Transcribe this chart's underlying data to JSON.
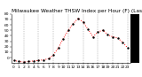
{
  "title": "Milwaukee Weather THSW Index per Hour (F) (Last 24 Hours)",
  "x": [
    0,
    1,
    2,
    3,
    4,
    5,
    6,
    7,
    8,
    9,
    10,
    11,
    12,
    13,
    14,
    15,
    16,
    17,
    18,
    19,
    20,
    21,
    22,
    23
  ],
  "y": [
    -5,
    -7,
    -8,
    -7,
    -6,
    -5,
    -4,
    -2,
    5,
    18,
    35,
    50,
    62,
    72,
    65,
    52,
    38,
    47,
    50,
    42,
    38,
    36,
    28,
    18
  ],
  "line_color": "#ff0000",
  "marker_color": "#000000",
  "bg_color": "#ffffff",
  "grid_color": "#888888",
  "title_color": "#000000",
  "title_fontsize": 4.2,
  "tick_fontsize": 3.2,
  "ylim": [
    -10,
    80
  ],
  "yticks": [
    0,
    10,
    20,
    30,
    40,
    50,
    60,
    70,
    80
  ],
  "ytick_labels": [
    "0",
    "10",
    "20",
    "30",
    "40",
    "50",
    "60",
    "70",
    "80"
  ],
  "right_panel_color": "#000000",
  "vgrid_positions": [
    2,
    5,
    8,
    11,
    14,
    17,
    20,
    23
  ]
}
